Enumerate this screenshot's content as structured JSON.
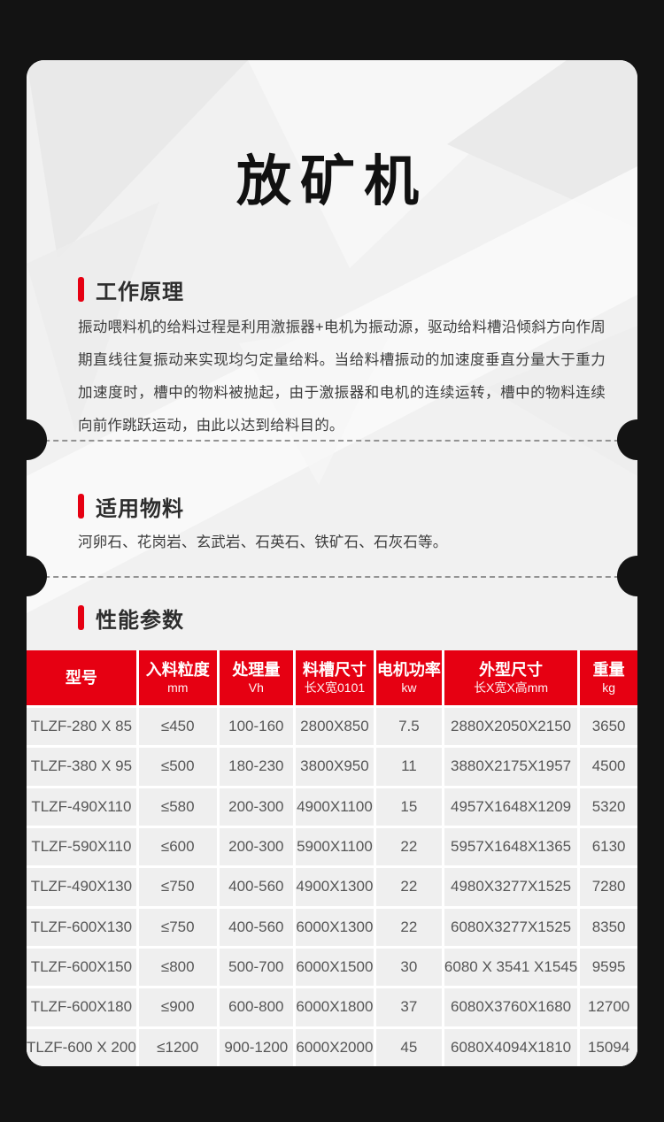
{
  "page": {
    "title": "放矿机",
    "colors": {
      "accent_red": "#e60012",
      "page_bg": "#131313",
      "card_bg": "#f1f1f1",
      "row_bg": "#efefef",
      "header_text_color": "#ffffff",
      "cell_text_color": "#565656"
    }
  },
  "sections": [
    {
      "heading": "工作原理",
      "body": "振动喂料机的给料过程是利用激振器+电机为振动源，驱动给料槽沿倾斜方向作周期直线往复振动来实现均匀定量给料。当给料槽振动的加速度垂直分量大于重力加速度时，槽中的物料被抛起，由于激振器和电机的连续运转，槽中的物料连续向前作跳跃运动，由此以达到给料目的。"
    },
    {
      "heading": "适用物料",
      "body": "河卵石、花岗岩、玄武岩、石英石、铁矿石、石灰石等。"
    },
    {
      "heading": "性能参数"
    }
  ],
  "table": {
    "columns": [
      {
        "title": "型号",
        "unit": ""
      },
      {
        "title": "入料粒度",
        "unit": "mm"
      },
      {
        "title": "处理量",
        "unit": "Vh"
      },
      {
        "title": "料槽尺寸",
        "unit": "长X宽0101"
      },
      {
        "title": "电机功率",
        "unit": "kw"
      },
      {
        "title": "外型尺寸",
        "unit": "长X宽X高mm"
      },
      {
        "title": "重量",
        "unit": "kg"
      }
    ],
    "rows": [
      [
        "TLZF-280 X 85",
        "≤450",
        "100-160",
        "2800X850",
        "7.5",
        "2880X2050X2150",
        "3650"
      ],
      [
        "TLZF-380 X 95",
        "≤500",
        "180-230",
        "3800X950",
        "11",
        "3880X2175X1957",
        "4500"
      ],
      [
        "TLZF-490X110",
        "≤580",
        "200-300",
        "4900X1100",
        "15",
        "4957X1648X1209",
        "5320"
      ],
      [
        "TLZF-590X110",
        "≤600",
        "200-300",
        "5900X1100",
        "22",
        "5957X1648X1365",
        "6130"
      ],
      [
        "TLZF-490X130",
        "≤750",
        "400-560",
        "4900X1300",
        "22",
        "4980X3277X1525",
        "7280"
      ],
      [
        "TLZF-600X130",
        "≤750",
        "400-560",
        "6000X1300",
        "22",
        "6080X3277X1525",
        "8350"
      ],
      [
        "TLZF-600X150",
        "≤800",
        "500-700",
        "6000X1500",
        "30",
        "6080 X 3541 X1545",
        "9595"
      ],
      [
        "TLZF-600X180",
        "≤900",
        "600-800",
        "6000X1800",
        "37",
        "6080X3760X1680",
        "12700"
      ],
      [
        "TLZF-600 X 200",
        "≤1200",
        "900-1200",
        "6000X2000",
        "45",
        "6080X4094X1810",
        "15094"
      ]
    ]
  }
}
